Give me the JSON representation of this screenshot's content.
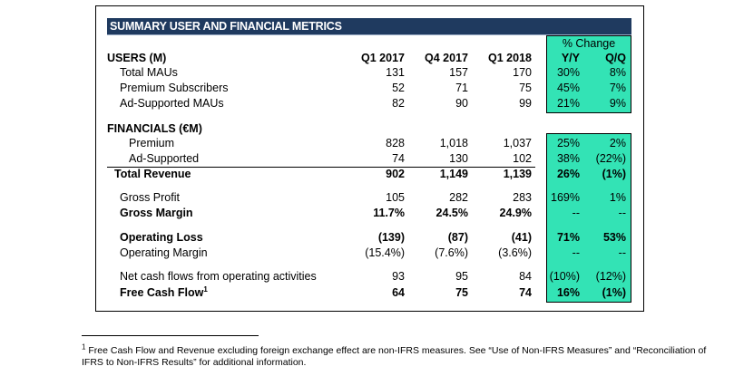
{
  "title": "SUMMARY USER AND FINANCIAL METRICS",
  "pct_change_header": "% Change",
  "columns": [
    "Q1 2017",
    "Q4 2017",
    "Q1 2018",
    "Y/Y",
    "Q/Q"
  ],
  "sections": {
    "users": {
      "label": "USERS (M)"
    },
    "financials": {
      "label": "FINANCIALS (€M)"
    }
  },
  "rows": [
    {
      "label": "Total MAUs",
      "q1_2017": "131",
      "q4_2017": "157",
      "q1_2018": "170",
      "yy": "30%",
      "qq": "8%"
    },
    {
      "label": "Premium Subscribers",
      "q1_2017": "52",
      "q4_2017": "71",
      "q1_2018": "75",
      "yy": "45%",
      "qq": "7%"
    },
    {
      "label": "Ad-Supported MAUs",
      "q1_2017": "82",
      "q4_2017": "90",
      "q1_2018": "99",
      "yy": "21%",
      "qq": "9%"
    },
    {
      "label": "Premium",
      "q1_2017": "828",
      "q4_2017": "1,018",
      "q1_2018": "1,037",
      "yy": "25%",
      "qq": "2%"
    },
    {
      "label": "Ad-Supported",
      "q1_2017": "74",
      "q4_2017": "130",
      "q1_2018": "102",
      "yy": "38%",
      "qq": "(22%)"
    },
    {
      "label": "Total Revenue",
      "q1_2017": "902",
      "q4_2017": "1,149",
      "q1_2018": "1,139",
      "yy": "26%",
      "qq": "(1%)"
    },
    {
      "label": "Gross Profit",
      "q1_2017": "105",
      "q4_2017": "282",
      "q1_2018": "283",
      "yy": "169%",
      "qq": "1%"
    },
    {
      "label": "Gross Margin",
      "q1_2017": "11.7%",
      "q4_2017": "24.5%",
      "q1_2018": "24.9%",
      "yy": "--",
      "qq": "--"
    },
    {
      "label": "Operating Loss",
      "q1_2017": "(139)",
      "q4_2017": "(87)",
      "q1_2018": "(41)",
      "yy": "71%",
      "qq": "53%"
    },
    {
      "label": "Operating Margin",
      "q1_2017": "(15.4%)",
      "q4_2017": "(7.6%)",
      "q1_2018": "(3.6%)",
      "yy": "--",
      "qq": "--"
    },
    {
      "label": "Net cash flows from operating activities",
      "q1_2017": "93",
      "q4_2017": "95",
      "q1_2018": "84",
      "yy": "(10%)",
      "qq": "(12%)"
    },
    {
      "label": "Free Cash Flow",
      "label_sup": "1",
      "q1_2017": "64",
      "q4_2017": "75",
      "q1_2018": "74",
      "yy": "16%",
      "qq": "(1%)"
    }
  ],
  "footnote": {
    "marker": "1",
    "text": " Free Cash Flow and Revenue excluding foreign exchange effect are non-IFRS measures. See “Use of Non-IFRS Measures” and “Reconciliation of IFRS to Non-IFRS Results” for additional information."
  },
  "colors": {
    "banner": "#1f3a5f",
    "highlight": "#33e3b5"
  }
}
